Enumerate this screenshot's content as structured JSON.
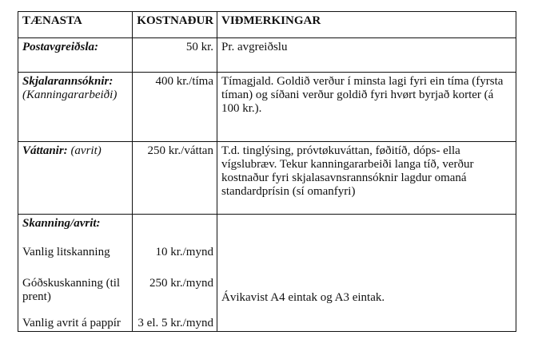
{
  "header": {
    "service": "TÆNASTA",
    "cost": "KOSTNAÐUR",
    "remarks": "VIÐMERKINGAR"
  },
  "rows": [
    {
      "service": "Postavgreiðsla:",
      "cost": "50 kr.",
      "remarks": "Pr. avgreiðslu"
    },
    {
      "service": "Skjalarannsóknir:",
      "service_note": "(Kanningararbeiði)",
      "cost": "400 kr./tíma",
      "remarks": "Tímagjald. Goldið verður í minsta lagi fyri ein tíma (fyrsta tíman) og síðani verður goldið fyri hvørt byrjað korter (á 100 kr.)."
    },
    {
      "service": "Váttanir:",
      "service_note": "(avrit)",
      "cost": "250 kr./váttan",
      "remarks": "T.d. tinglýsing, próvtøkuváttan, føðitíð, dóps- ella vígslubræv. Tekur kanningararbeiði langa tíð, verður kostnaður fyri skjalasavnsrannsóknir lagdur omaná standardprísin (sí omanfyri)"
    },
    {
      "service": "Skanning/avrit:",
      "remarks": "Ávikavist A4 eintak og A3 eintak.",
      "items": [
        {
          "label": "Vanlig litskanning",
          "cost": "10 kr./mynd"
        },
        {
          "label": "Góðskuskanning (til prent)",
          "cost": "250 kr./mynd"
        },
        {
          "label": "Vanlig avrit á pappír",
          "cost": "3 el. 5 kr./mynd"
        }
      ]
    }
  ]
}
